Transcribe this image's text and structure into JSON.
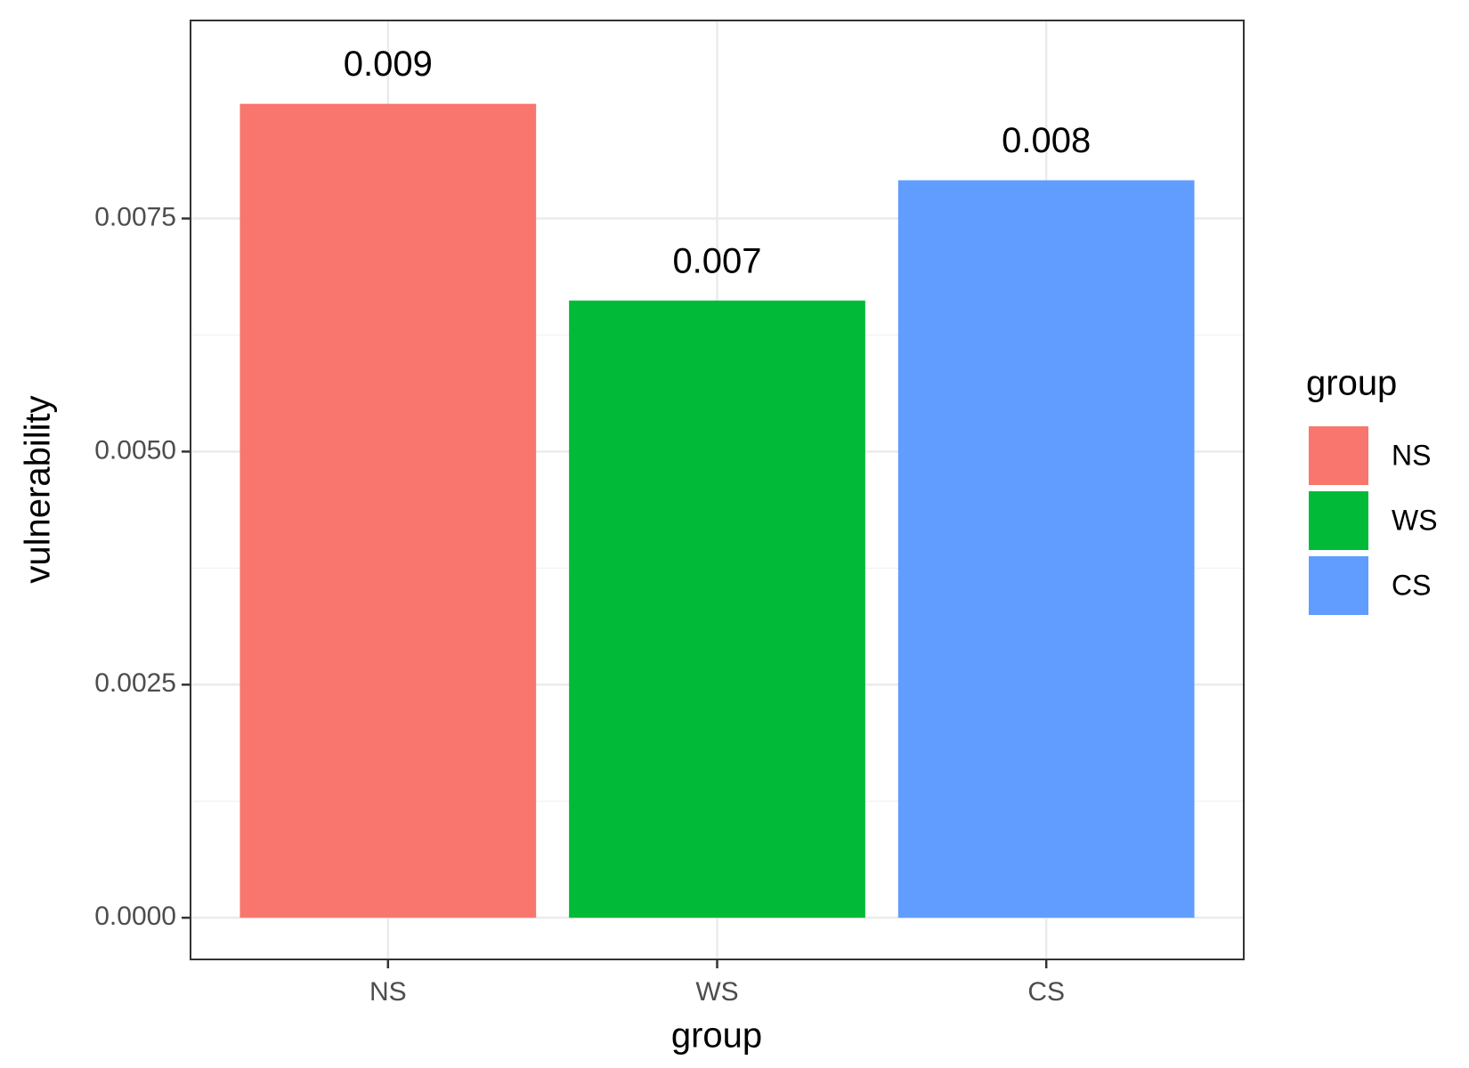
{
  "chart_data": {
    "type": "bar",
    "x_label": "group",
    "y_label": "vulnerability",
    "categories": [
      "NS",
      "WS",
      "CS"
    ],
    "values": [
      0.00873,
      0.00662,
      0.00791
    ],
    "value_labels": [
      "0.009",
      "0.007",
      "0.008"
    ],
    "colors": [
      "#f8766d",
      "#00ba38",
      "#619cff"
    ],
    "ylim": [
      -0.000447,
      0.009624
    ],
    "yticks": [
      {
        "value": 0,
        "label": "0.0000"
      },
      {
        "value": 0.0025,
        "label": "0.0025"
      },
      {
        "value": 0.005,
        "label": "0.0050"
      },
      {
        "value": 0.0075,
        "label": "0.0075"
      }
    ],
    "grid": true,
    "legend": {
      "title": "group",
      "position": "right"
    }
  }
}
